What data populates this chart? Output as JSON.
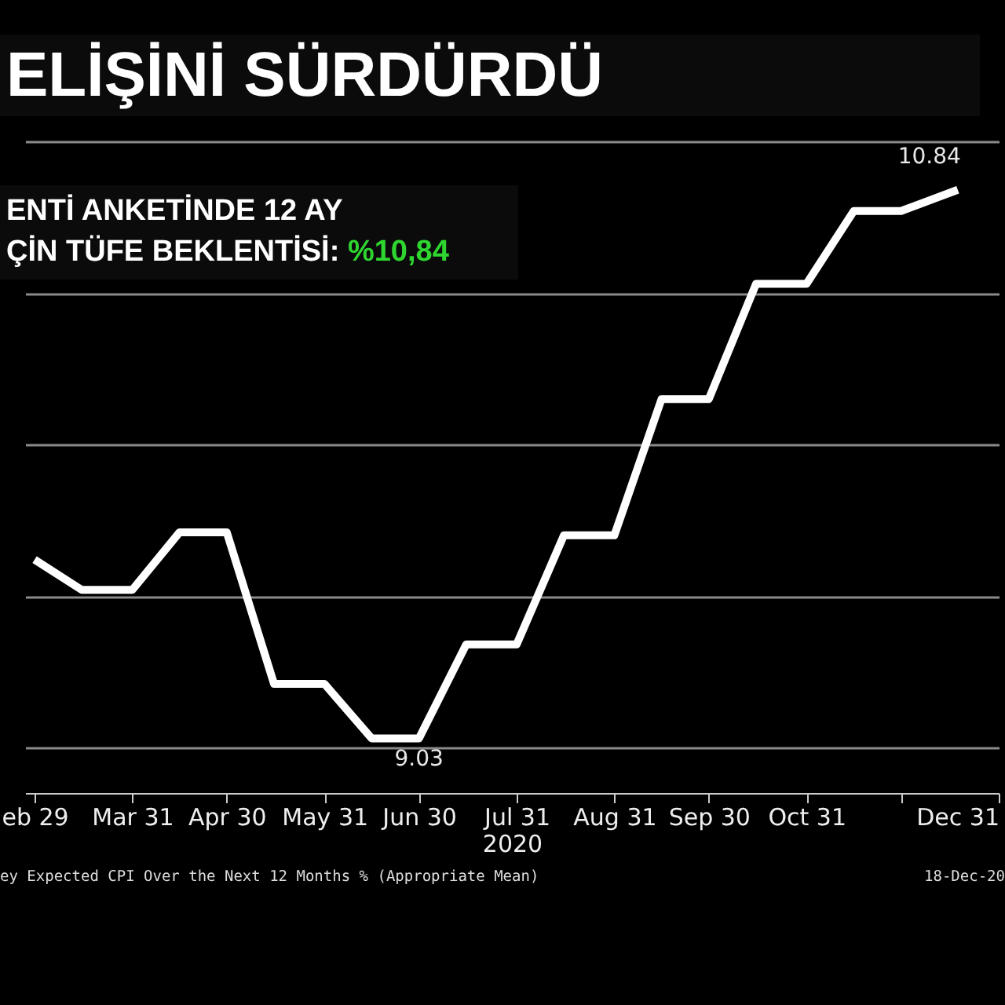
{
  "chart_data": {
    "type": "line",
    "title": "ELİŞİNİ SÜRDÜRDÜ",
    "xlabel": "2020",
    "annotations": [
      "ENTİ ANKETİNDE 12 AY",
      "ÇİN TÜFE BEKLENTİSİ:",
      "%10,84",
      "ey Expected CPI Over the Next 12 Months % (Appropriate Mean)",
      "18-Dec-20"
    ],
    "x": [
      "2020-02-29",
      "2020-03-15",
      "2020-03-31",
      "2020-04-15",
      "2020-04-30",
      "2020-05-15",
      "2020-05-31",
      "2020-06-15",
      "2020-06-30",
      "2020-07-15",
      "2020-07-31",
      "2020-08-15",
      "2020-08-31",
      "2020-09-15",
      "2020-09-30",
      "2020-10-15",
      "2020-10-31",
      "2020-11-15",
      "2020-11-30",
      "2020-12-18"
    ],
    "series": [
      {
        "color": "#ffffff",
        "values": [
          9.62,
          9.52,
          9.52,
          9.71,
          9.71,
          9.21,
          9.21,
          9.03,
          9.03,
          9.34,
          9.34,
          9.7,
          9.7,
          10.15,
          10.15,
          10.53,
          10.53,
          10.77,
          10.77,
          10.84
        ],
        "value_labels": [
          null,
          null,
          null,
          null,
          null,
          null,
          null,
          null,
          "9.03",
          null,
          null,
          null,
          null,
          null,
          null,
          null,
          null,
          null,
          null,
          "10.84"
        ]
      }
    ],
    "xlim": [
      "2020-02-26",
      "2020-12-31"
    ],
    "xticks": [
      {
        "value": "2020-02-29",
        "label": "eb 29"
      },
      {
        "value": "2020-03-31",
        "label": "Mar 31"
      },
      {
        "value": "2020-04-30",
        "label": "Apr 30"
      },
      {
        "value": "2020-05-31",
        "label": "May 31"
      },
      {
        "value": "2020-06-30",
        "label": "Jun 30"
      },
      {
        "value": "2020-07-31",
        "label": "Jul 31"
      },
      {
        "value": "2020-08-31",
        "label": "Aug 31"
      },
      {
        "value": "2020-09-30",
        "label": "Sep 30"
      },
      {
        "value": "2020-10-31",
        "label": "Oct 31"
      },
      {
        "value": "2020-11-30",
        "label": null
      },
      {
        "value": "2020-12-31",
        "label": "Dec 31"
      }
    ],
    "ylim": [
      8.85,
      11
    ],
    "yticks": [
      {
        "value": 9,
        "label": null
      },
      {
        "value": 9.5,
        "label": null
      },
      {
        "value": 10,
        "label": null
      },
      {
        "value": 10.5,
        "label": null
      },
      {
        "value": 11,
        "label": null
      }
    ],
    "grid": "y",
    "marker": "none",
    "line_style": "solid"
  }
}
